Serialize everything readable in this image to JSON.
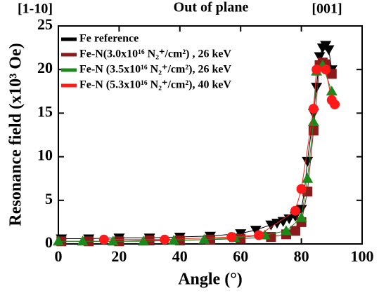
{
  "chart_data": {
    "type": "scatter",
    "annotations": [
      "[1-10]",
      "Out of plane",
      "[001]"
    ],
    "xlabel": "Angle (°)",
    "ylabel": "Resonance field (x10³ Oe)",
    "xlim": [
      0,
      100
    ],
    "xticks": [
      0,
      20,
      40,
      60,
      80,
      100
    ],
    "ylim": [
      0,
      25
    ],
    "yticks": [
      0,
      5,
      10,
      15,
      20,
      25
    ],
    "legend": "upper left",
    "series": [
      {
        "name": "Fe reference",
        "color": "#000000",
        "marker": "triangle-down",
        "x": [
          1,
          10,
          20,
          30,
          40,
          50,
          60,
          65,
          70,
          72,
          74,
          76,
          78,
          80,
          81,
          82,
          84,
          85,
          86,
          87,
          88,
          89,
          90
        ],
        "values": [
          0.6,
          0.6,
          0.7,
          0.7,
          0.8,
          0.9,
          1.2,
          1.6,
          2.2,
          2.4,
          2.6,
          2.9,
          3.2,
          4.0,
          6.0,
          9.5,
          15,
          18,
          21.5,
          22.5,
          22.8,
          22.3,
          20
        ]
      },
      {
        "name": "Fe-N(3.0x10¹⁶ N₂⁺/cm²) , 26 keV",
        "color": "#8b1a1a",
        "marker": "square",
        "x": [
          1,
          10,
          20,
          30,
          40,
          50,
          60,
          70,
          75,
          78,
          80,
          82,
          84,
          86,
          87,
          88,
          90
        ],
        "values": [
          0.3,
          0.3,
          0.3,
          0.4,
          0.4,
          0.5,
          0.6,
          0.8,
          1.1,
          1.5,
          2.5,
          6,
          13,
          20.5,
          20.8,
          20.6,
          19.5
        ]
      },
      {
        "name": "Fe-N (3.5x10¹⁶ N₂⁺/cm²), 26 keV",
        "color": "#1a8a1a",
        "marker": "triangle-up",
        "x": [
          0,
          8,
          18,
          28,
          38,
          48,
          58,
          68,
          75,
          80,
          82,
          84,
          85,
          87,
          90
        ],
        "values": [
          0.3,
          0.3,
          0.3,
          0.3,
          0.4,
          0.5,
          0.7,
          1.0,
          1.5,
          3,
          7.5,
          14,
          19.8,
          20.5,
          17.5
        ]
      },
      {
        "name": "Fe-N (5.3x10¹⁶ N₂⁺/cm²), 40 keV",
        "color": "#ff1a1a",
        "marker": "circle",
        "x": [
          15,
          35,
          57,
          66,
          78,
          80,
          84,
          85,
          88,
          90,
          91
        ],
        "values": [
          0.5,
          0.5,
          0.8,
          1.0,
          3.8,
          6.3,
          15.5,
          20,
          20,
          16.5,
          16
        ]
      }
    ]
  }
}
